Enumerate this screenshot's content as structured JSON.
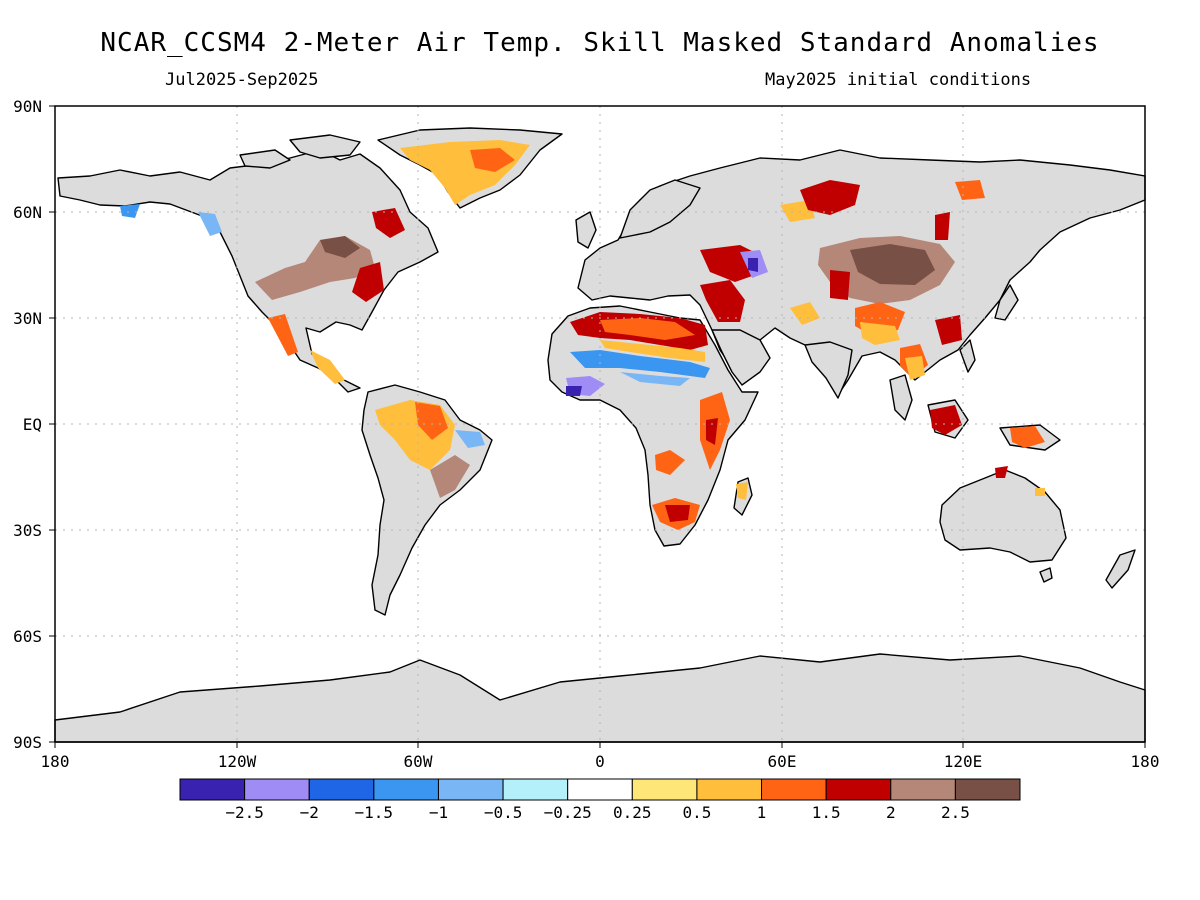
{
  "header": {
    "title": "NCAR_CCSM4 2-Meter Air Temp. Skill Masked Standard Anomalies",
    "period": "Jul2025-Sep2025",
    "init": "May2025 initial conditions"
  },
  "axes": {
    "lat_labels": [
      "90N",
      "60N",
      "30N",
      "EQ",
      "30S",
      "60S",
      "90S"
    ],
    "lon_labels": [
      "180",
      "120W",
      "60W",
      "0",
      "60E",
      "120E",
      "180"
    ]
  },
  "colorbar": {
    "colors": [
      "#3a22b0",
      "#a08cf5",
      "#1f66e6",
      "#3a96f0",
      "#78b6f5",
      "#b4f0fa",
      "#ffffff",
      "#ffe678",
      "#ffbe3c",
      "#ff6414",
      "#c00000",
      "#b48778",
      "#785046"
    ],
    "tick_labels": [
      "−2.5",
      "−2",
      "−1.5",
      "−1",
      "−0.5",
      "−0.25",
      "0.25",
      "0.5",
      "1",
      "1.5",
      "2",
      "2.5"
    ]
  },
  "colors": {
    "land_masked": "#dcdcdc",
    "coastline": "#000000",
    "gridline": "#b4b4b4"
  }
}
